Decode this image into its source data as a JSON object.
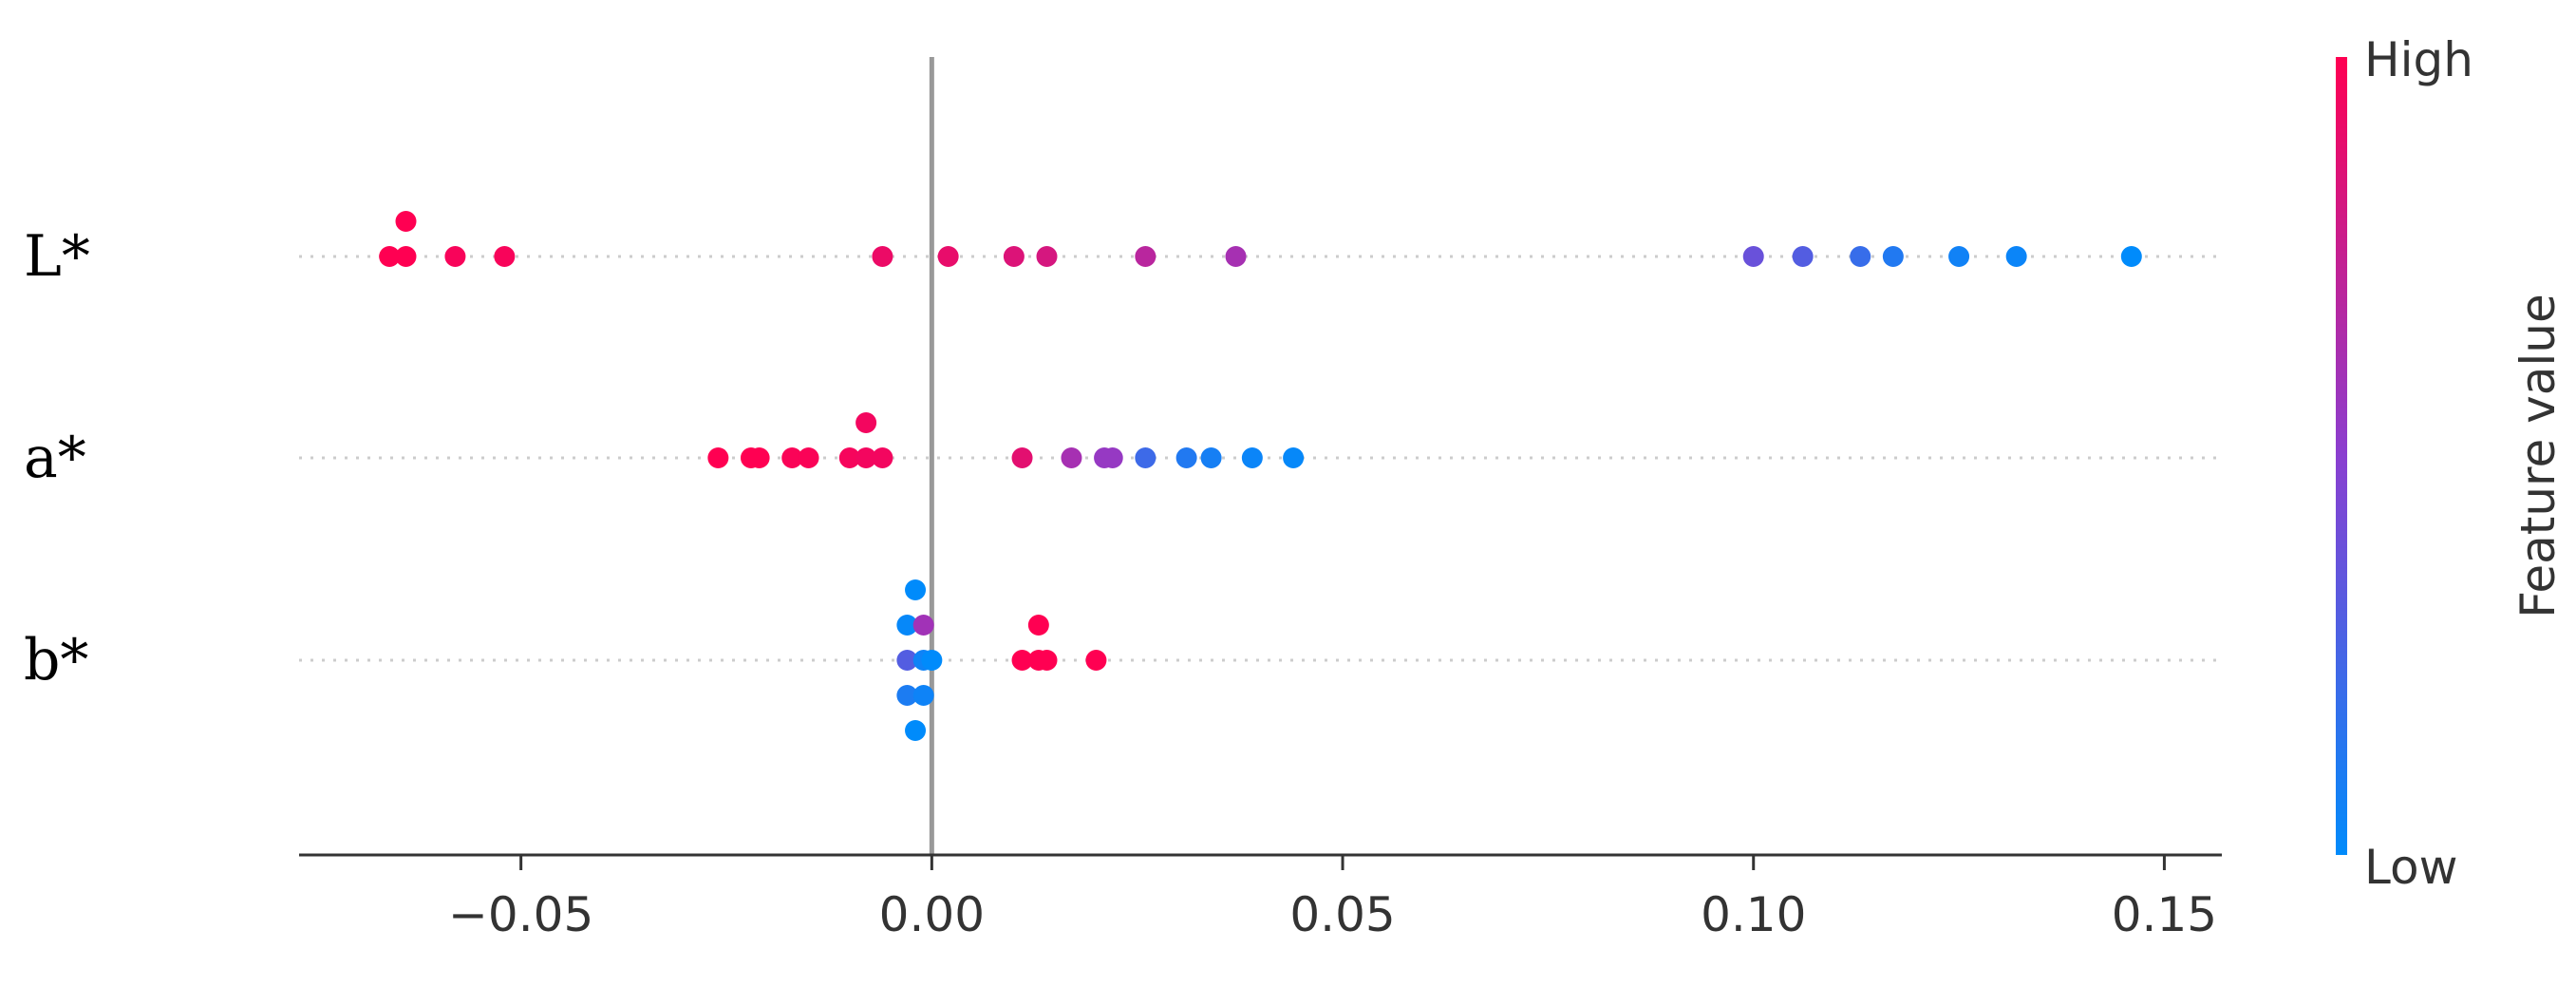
{
  "chart_data": {
    "type": "scatter",
    "subtype": "shap-beeswarm",
    "features": [
      "L*",
      "a*",
      "b*"
    ],
    "x_ticks": [
      -0.05,
      0.0,
      0.05,
      0.1,
      0.15
    ],
    "x_tick_labels": [
      "−0.05",
      "0.00",
      "0.05",
      "0.10",
      "0.15"
    ],
    "xlim": [
      -0.077,
      0.157
    ],
    "zero_line": 0.0,
    "grid": false,
    "colorbar": {
      "label": "Feature value",
      "high_label": "High",
      "low_label": "Low",
      "high_color": "#ff0052",
      "mid_color": "#8a3fd0",
      "low_color": "#008bfb",
      "placement": "right"
    },
    "series": [
      {
        "feature": "L*",
        "points": [
          {
            "x": -0.064,
            "v": 1.0,
            "lane": 1
          },
          {
            "x": -0.066,
            "v": 1.0,
            "lane": 0
          },
          {
            "x": -0.064,
            "v": 1.0,
            "lane": 0
          },
          {
            "x": -0.058,
            "v": 0.97,
            "lane": 0
          },
          {
            "x": -0.052,
            "v": 0.97,
            "lane": 0
          },
          {
            "x": -0.006,
            "v": 0.92,
            "lane": 0
          },
          {
            "x": 0.002,
            "v": 0.9,
            "lane": 0
          },
          {
            "x": 0.01,
            "v": 0.85,
            "lane": 0
          },
          {
            "x": 0.014,
            "v": 0.82,
            "lane": 0
          },
          {
            "x": 0.026,
            "v": 0.7,
            "lane": 0
          },
          {
            "x": 0.037,
            "v": 0.62,
            "lane": 0
          },
          {
            "x": 0.1,
            "v": 0.38,
            "lane": 0
          },
          {
            "x": 0.106,
            "v": 0.3,
            "lane": 0
          },
          {
            "x": 0.113,
            "v": 0.2,
            "lane": 0
          },
          {
            "x": 0.117,
            "v": 0.12,
            "lane": 0
          },
          {
            "x": 0.125,
            "v": 0.06,
            "lane": 0
          },
          {
            "x": 0.132,
            "v": 0.04,
            "lane": 0
          },
          {
            "x": 0.146,
            "v": 0.0,
            "lane": 0
          }
        ]
      },
      {
        "feature": "a*",
        "points": [
          {
            "x": -0.008,
            "v": 0.95,
            "lane": 1
          },
          {
            "x": -0.026,
            "v": 1.0,
            "lane": 0
          },
          {
            "x": -0.022,
            "v": 1.0,
            "lane": 0
          },
          {
            "x": -0.021,
            "v": 1.0,
            "lane": 0
          },
          {
            "x": -0.017,
            "v": 0.98,
            "lane": 0
          },
          {
            "x": -0.015,
            "v": 0.98,
            "lane": 0
          },
          {
            "x": -0.01,
            "v": 0.96,
            "lane": 0
          },
          {
            "x": -0.008,
            "v": 0.95,
            "lane": 0
          },
          {
            "x": -0.006,
            "v": 0.95,
            "lane": 0
          },
          {
            "x": 0.011,
            "v": 0.88,
            "lane": 0
          },
          {
            "x": 0.017,
            "v": 0.62,
            "lane": 0
          },
          {
            "x": 0.021,
            "v": 0.55,
            "lane": 0
          },
          {
            "x": 0.022,
            "v": 0.55,
            "lane": 0
          },
          {
            "x": 0.026,
            "v": 0.22,
            "lane": 0
          },
          {
            "x": 0.031,
            "v": 0.12,
            "lane": 0
          },
          {
            "x": 0.034,
            "v": 0.08,
            "lane": 0
          },
          {
            "x": 0.039,
            "v": 0.04,
            "lane": 0
          },
          {
            "x": 0.044,
            "v": 0.02,
            "lane": 0
          }
        ]
      },
      {
        "feature": "b*",
        "points": [
          {
            "x": -0.002,
            "v": 0.0,
            "lane": 2
          },
          {
            "x": -0.003,
            "v": 0.02,
            "lane": 1
          },
          {
            "x": -0.001,
            "v": 0.6,
            "lane": 1
          },
          {
            "x": -0.003,
            "v": 0.3,
            "lane": 0
          },
          {
            "x": -0.001,
            "v": 0.05,
            "lane": 0
          },
          {
            "x": 0.0,
            "v": 0.0,
            "lane": 0
          },
          {
            "x": -0.003,
            "v": 0.1,
            "lane": -1
          },
          {
            "x": -0.001,
            "v": 0.05,
            "lane": -1
          },
          {
            "x": -0.002,
            "v": 0.0,
            "lane": -2
          },
          {
            "x": 0.013,
            "v": 1.0,
            "lane": 1
          },
          {
            "x": 0.011,
            "v": 1.0,
            "lane": 0
          },
          {
            "x": 0.013,
            "v": 1.0,
            "lane": 0
          },
          {
            "x": 0.014,
            "v": 1.0,
            "lane": 0
          },
          {
            "x": 0.02,
            "v": 1.0,
            "lane": 0
          }
        ]
      }
    ]
  }
}
